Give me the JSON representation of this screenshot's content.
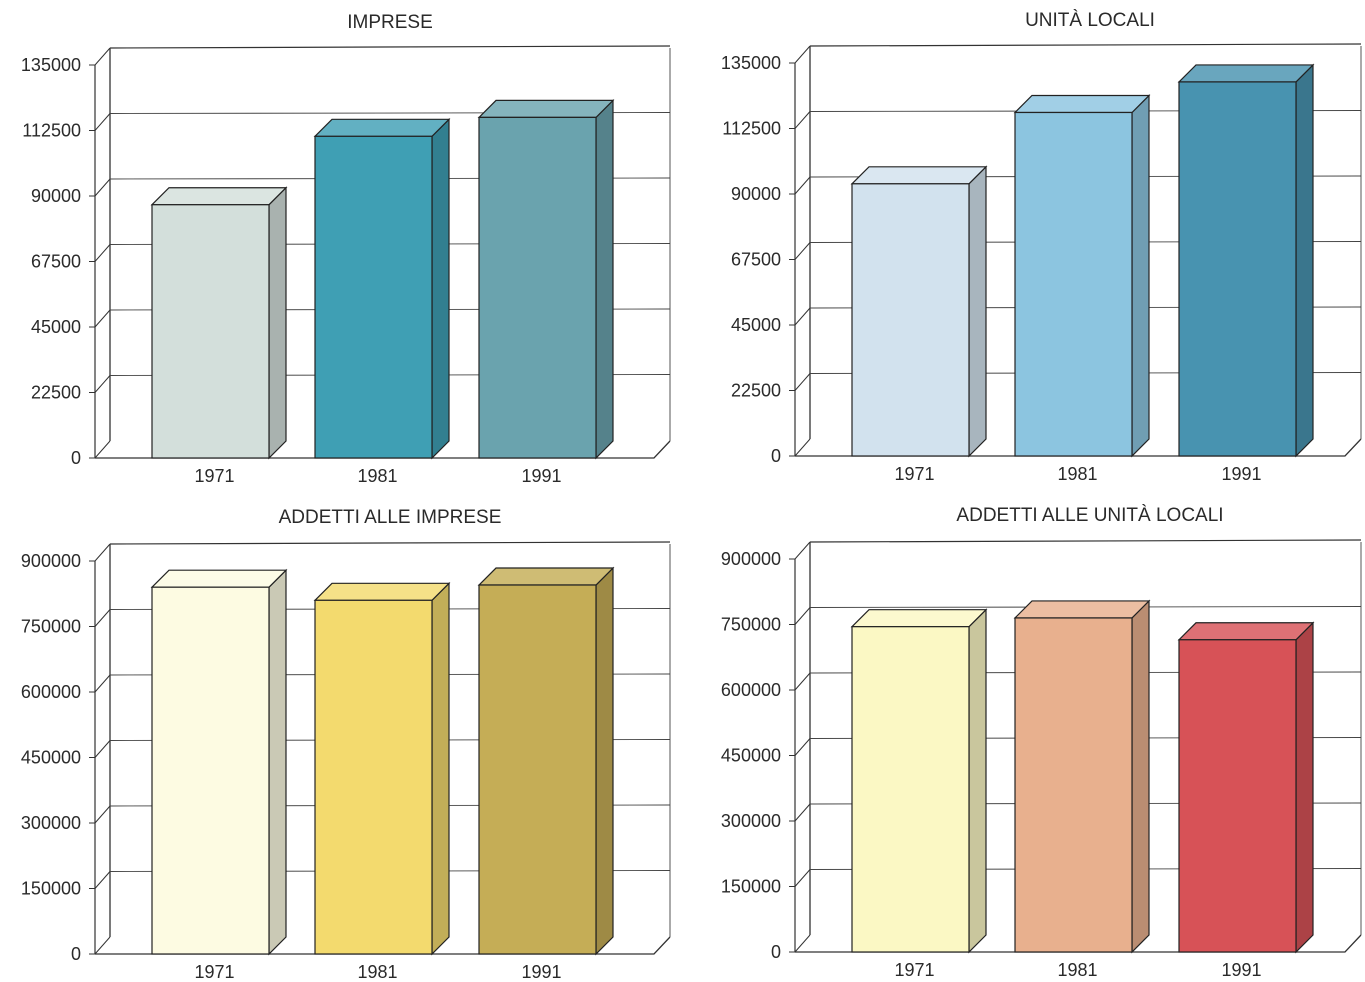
{
  "chart_data": [
    {
      "type": "bar",
      "title": "IMPRESE",
      "categories": [
        "1971",
        "1981",
        "1991"
      ],
      "values": [
        87000,
        110500,
        117000
      ],
      "ylim": [
        0,
        135000
      ],
      "yticks": [
        "0",
        "22500",
        "45000",
        "67500",
        "90000",
        "112500",
        "135000"
      ],
      "grid": true,
      "colors": [
        "#d3dfdb",
        "#3f9fb4",
        "#6aa3ae"
      ]
    },
    {
      "type": "bar",
      "title": "UNITÀ LOCALI",
      "categories": [
        "1971",
        "1981",
        "1991"
      ],
      "values": [
        93500,
        118000,
        128500
      ],
      "ylim": [
        0,
        135000
      ],
      "yticks": [
        "0",
        "22500",
        "45000",
        "67500",
        "90000",
        "112500",
        "135000"
      ],
      "grid": true,
      "colors": [
        "#d2e2ee",
        "#8cc5e0",
        "#4893b0"
      ]
    },
    {
      "type": "bar",
      "title": "ADDETTI ALLE IMPRESE",
      "categories": [
        "1971",
        "1981",
        "1991"
      ],
      "values": [
        840000,
        810000,
        845000
      ],
      "ylim": [
        0,
        900000
      ],
      "yticks": [
        "0",
        "150000",
        "300000",
        "450000",
        "600000",
        "750000",
        "900000"
      ],
      "grid": true,
      "colors": [
        "#fdfbe2",
        "#f3da6e",
        "#c5ad56"
      ]
    },
    {
      "type": "bar",
      "title": "ADDETTI ALLE UNITÀ LOCALI",
      "categories": [
        "1971",
        "1981",
        "1991"
      ],
      "values": [
        745000,
        765000,
        715000
      ],
      "ylim": [
        0,
        900000
      ],
      "yticks": [
        "0",
        "150000",
        "300000",
        "450000",
        "600000",
        "750000",
        "900000"
      ],
      "grid": true,
      "colors": [
        "#fbf8c4",
        "#e8b08e",
        "#d75257"
      ]
    }
  ]
}
